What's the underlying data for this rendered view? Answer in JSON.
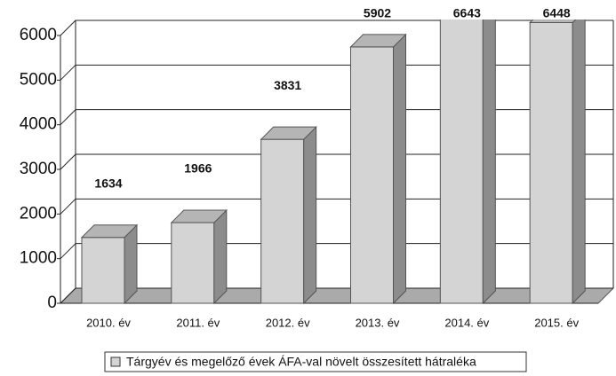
{
  "chart_data": {
    "type": "bar3d",
    "categories": [
      "2010. év",
      "2011. év",
      "2012. év",
      "2013. év",
      "2014. év",
      "2015. év"
    ],
    "series": [
      {
        "name": "Tárgyév és megelőző évek ÁFA-val növelt összesített hátraléka",
        "color": "#d4d4d4",
        "values": [
          1634,
          1966,
          3831,
          5902,
          6643,
          6448
        ]
      }
    ],
    "ylim": [
      0,
      6000
    ],
    "yticks": [
      0,
      1000,
      2000,
      3000,
      4000,
      5000,
      6000
    ],
    "grid": true,
    "legend": "bottom"
  }
}
